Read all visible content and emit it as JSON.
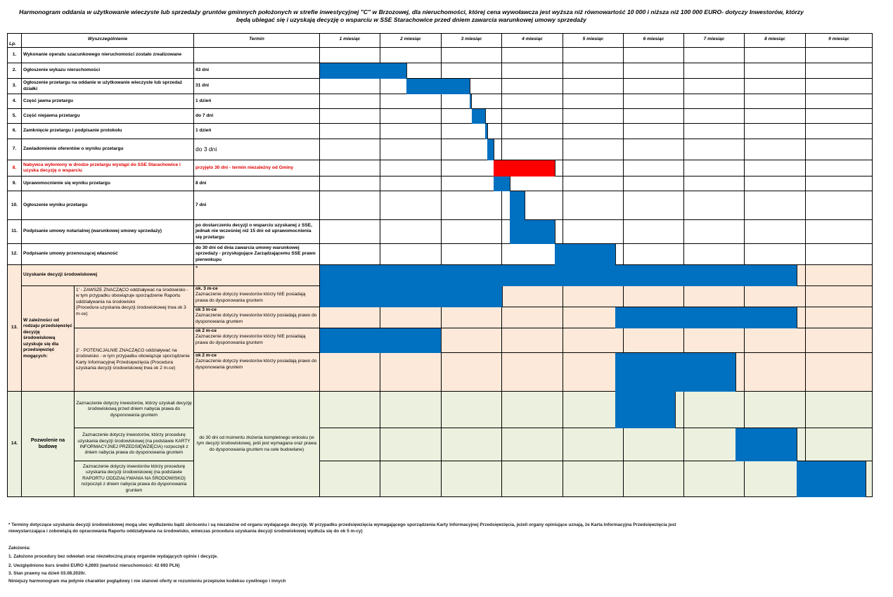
{
  "title": {
    "line1": "Harmonogram oddania w użytkowanie wieczyste lub sprzedaży gruntów gminnych położonych w strefie inwestycyjnej \"C\" w Brzozowej, dla nieruchomości, której cena wywoławcza jest wyższa niż równowartość 10 000 i niższa niż 100 000 EURO- dotyczy Inwestorów, którzy",
    "line2": "będą ubiegać się i uzyskają decyzję o wsparciu w SSE Starachowice przed dniem zawarcia warunkowej umowy sprzedaży"
  },
  "headers": {
    "lp": "Lp.",
    "desc": "Wyszczególnienie",
    "term": "Termin",
    "months": [
      "1 miesiąc",
      "2 miesiąc",
      "3 miesiąc",
      "4 miesiąc",
      "5 miesiąc",
      "6 miesiąc",
      "7 miesiąc",
      "8 miesiąc",
      "9 miesiąc"
    ]
  },
  "rows": [
    {
      "lp": "1.",
      "desc": "Wykonanie operatu szacunkowego nieruchomości zostało zrealizowane",
      "term": ""
    },
    {
      "lp": "2.",
      "desc": "Ogłoszenie wykazu nieruchomości",
      "term": "43 dni"
    },
    {
      "lp": "3.",
      "desc": "Ogłoszenie  przetargu na oddanie w użytkowanie wieczyste lub sprzedaż działki",
      "term": "31 dni"
    },
    {
      "lp": "4.",
      "desc": "Część jawna przetargu",
      "term": "1 dzień"
    },
    {
      "lp": "5.",
      "desc": "Część niejawna przetargu",
      "term": "do 7 dni"
    },
    {
      "lp": "6.",
      "desc": "Zamknięcie przetargu i podpisanie protokołu",
      "term": "1 dzień"
    },
    {
      "lp": "7.",
      "desc": "Zawiadomienie oferentów o wyniku przetargu",
      "term": "do 3 dni"
    },
    {
      "lp": "8.",
      "desc": "Nabywca wyłoniony w drodze przetargu wystąpi do SSE Starachowice i uzyska decyzję o wsparciu",
      "term": "przyjęto 30 dni - termin niezależny od Gminy"
    },
    {
      "lp": "9.",
      "desc": "Uprawomocnienie się wyniku przetargu",
      "term": "8 dni"
    },
    {
      "lp": "10.",
      "desc": "Ogłoszenie wyniku przetargu",
      "term": "7 dni"
    },
    {
      "lp": "11.",
      "desc": "Podpisanie umowy notarialnej (warunkowej umowy sprzedaży)",
      "term": " po dostarczeniu decyzji o wsparciu uzyskanej z SSE, jednak nie wcześniej niż 15 dni od uprawomocnienia się przetargu"
    },
    {
      "lp": "12.",
      "desc": "Podpisanie umowy przenoszącej własność",
      "term": "do 30 dni od dnia zawarcia umowy warunkowej sprzedaży - przysługujące Zarządzającemu SSE prawo pierwokupu"
    }
  ],
  "section13": {
    "lp": "13.",
    "title": "Uzyskanie decyzji środowiskowej",
    "title_term": "*",
    "group": "W zależności od rodzaju przedsięwzięć decyzję środowiskową uzyskuje się dla przedsięwzięć mogących:",
    "opt1": {
      "text": "1' - ZAWSZE ZNACZĄCO oddziaływać na środowisko - w tym przypadku obowiązuje sporządzenie Raportu oddziaływania na środowisko",
      "note": "(Procedura uzyskania decyzji środowiskowej trwa ok 3 m-ce)",
      "terms": [
        {
          "head": "ok. 3 m-ce",
          "text": "Zaznaczenie dotyczy inwestorów którzy  NIE posiadają prawa do dysponowania gruntem"
        },
        {
          "head": "ok 3 m-ce",
          "text": "Zaznaczenie dotyczy inwestorów którzy posiadają prawo do dysponowania gruntem"
        }
      ]
    },
    "opt2": {
      "text": "2' - POTENCJALNIE ZNACZĄCO oddziaływać na środowisko - w tym przypadku obowiązuje sporządzenie Karty Informacyjnej Przedsięwzięcia (Procedura uzyskania decyzji środowiskowej trwa ok 2 m-ce)",
      "terms": [
        {
          "head": "ok 2 m-ce",
          "text": "Zaznaczenie dotyczy inwestorów którzy  NIE posiadają prawa do dysponowania gruntem"
        },
        {
          "head": "ok 2 m-ce",
          "text": "Zaznaczenie dotyczy inwestorów którzy posiadają prawo do dysponowania gruntem"
        }
      ]
    }
  },
  "section14": {
    "lp": "14.",
    "title": "Pozwolenie na budowę",
    "items": [
      "Zaznaczenie dotyczy inwestorów, którzy uzyskali decyzję środowiskową przed dniem nabycia prawa do dysponowania gruntem",
      "Zaznaczenie dotyczy inwestorów, którzy procedurę uzyskania decyzji środowiskowej (na podstawie KARTY INFORMACYJNEJ PRZEDSIĘWZIĘCIA) rozpoczęli z dniem nabycia prawa do dysponowania gruntem",
      "Zaznaczenie dotyczy inwestorów którzy procedurę uzyskania decyzji środowiskowej (na podstawie RAPORTU ODDZIAŁYWANIA NA ŚRODOWISKO) rozpoczęli z dniem nabycia prawa do dysponowania gruntem"
    ],
    "term": "do 30 dni od momentu złożenia kompletnego wniosku (w tym decyzji środowiskowej, jeśli jest wymagana oraz prawa do dysponowania gruntem na cele budowlane)"
  },
  "footnote": {
    "line1": "* Terminy dotyczące uzyskania decyzji środowiskowej mogą ulec wydłużeniu bądź skróceniu i są niezależne od organu wydającego decyzję. W przypadku przedsięwzięcia wymagającego sporządzenia Karty Informacyjnej Przedsięwzięcia, jeżeli organy opiniujące uznają, że Karta Informacyjna Przedsięwzięcia jest",
    "line2": "niewystarczająca i zobowiążą do opracowania Raportu oddziaływana na środowisko, wówczas procedura uzyskania decyzji środowiskowej wydłuża się do ok 5 m-cy)"
  },
  "assumptions": {
    "title": "Założenia:",
    "items": [
      "1.     Założono procedury bez odwołań oraz niezwłoczną pracę organów wydających opinie i decyzje.",
      "2. Uwzględniono kurs średni EURO 4,2693 (wartość nieruchomości: 42 693 PLN)",
      "3. Stan prawny na dzień 03.08.2020r."
    ],
    "disclaimer": "Niniejszy harmonogram ma jedynie charakter poglądowy i nie stanowi oferty w rozumieniu przepisów kodeksu cywilnego i innych"
  },
  "colors": {
    "bar": "#0070c0",
    "bar_red": "#ff0000",
    "section13": "#fde9d9",
    "section14": "#ebf1de"
  },
  "chart_data": {
    "type": "gantt",
    "unit": "months",
    "xlim": [
      0,
      9
    ],
    "bars": [
      {
        "row": "r2",
        "start": 0,
        "end": 1.43,
        "color": "#0070c0"
      },
      {
        "row": "r3",
        "start": 1.43,
        "end": 2.47,
        "color": "#0070c0"
      },
      {
        "row": "r4",
        "start": 2.47,
        "end": 2.5,
        "color": "#0070c0"
      },
      {
        "row": "r5",
        "start": 2.5,
        "end": 2.73,
        "color": "#0070c0"
      },
      {
        "row": "r6",
        "start": 2.73,
        "end": 2.76,
        "color": "#0070c0"
      },
      {
        "row": "r7",
        "start": 2.76,
        "end": 2.87,
        "color": "#0070c0"
      },
      {
        "row": "r8",
        "start": 2.87,
        "end": 3.87,
        "color": "#ff0000"
      },
      {
        "row": "r9",
        "start": 2.87,
        "end": 3.13,
        "color": "#0070c0"
      },
      {
        "row": "r10",
        "start": 3.13,
        "end": 3.37,
        "color": "#0070c0"
      },
      {
        "row": "r11",
        "start": 3.13,
        "end": 3.87,
        "color": "#0070c0"
      },
      {
        "row": "r12",
        "start": 3.87,
        "end": 4.87,
        "color": "#0070c0"
      },
      {
        "row": "s13a",
        "start": 0,
        "end": 7.86,
        "color": "#0070c0"
      },
      {
        "row": "s13b",
        "start": 0,
        "end": 3,
        "color": "#0070c0"
      },
      {
        "row": "s13c",
        "start": 4.87,
        "end": 7.86,
        "color": "#0070c0"
      },
      {
        "row": "s13d",
        "start": 0,
        "end": 1.99,
        "color": "#0070c0"
      },
      {
        "row": "s13e",
        "start": 4.87,
        "end": 6.86,
        "color": "#0070c0"
      },
      {
        "row": "s14a",
        "start": 4.87,
        "end": 5.86,
        "color": "#0070c0"
      },
      {
        "row": "s14b",
        "start": 6.86,
        "end": 7.86,
        "color": "#0070c0"
      },
      {
        "row": "s14c",
        "start": 7.86,
        "end": 8.9,
        "color": "#0070c0"
      }
    ]
  }
}
